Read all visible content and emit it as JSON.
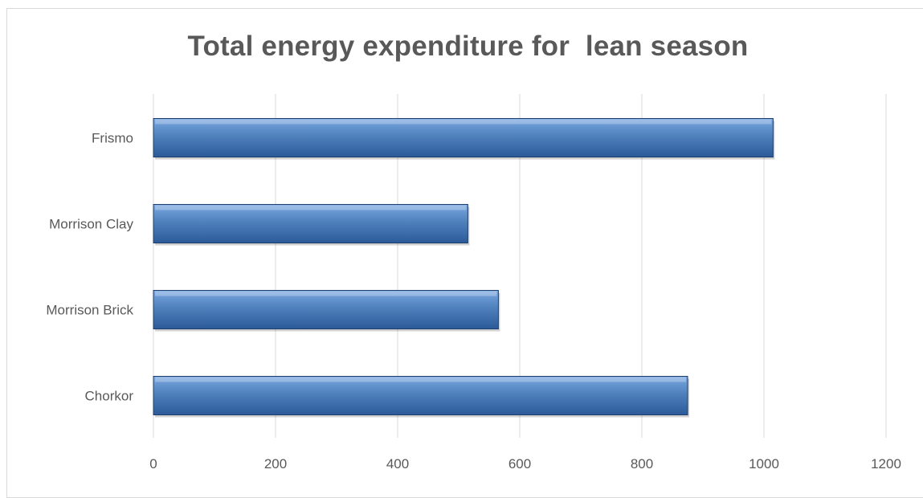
{
  "chart_data": {
    "type": "bar",
    "orientation": "horizontal",
    "title": "Total energy expenditure for  lean season",
    "categories": [
      "Frismo",
      "Morrison Clay",
      "Morrison Brick",
      "Chorkor"
    ],
    "values": [
      1015,
      515,
      565,
      875
    ],
    "xlim": [
      0,
      1200
    ],
    "xticks": [
      "0",
      "200",
      "400",
      "600",
      "800",
      "1000",
      "1200"
    ],
    "xlabel": "",
    "ylabel": "",
    "grid": "vertical",
    "legend": "none",
    "bar_color": "#4f81bd",
    "bar_color_light": "#7aa7e0",
    "bar_color_dark": "#2c5a99",
    "bar_edge_color": "#1f3f6f",
    "grid_color": "#d9d9d9",
    "text_color": "#595959"
  }
}
